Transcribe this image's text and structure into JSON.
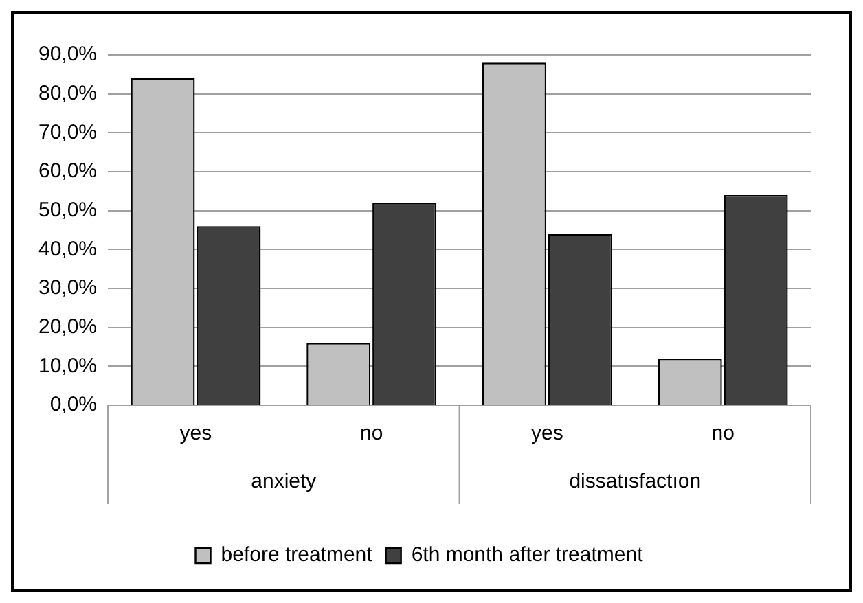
{
  "chart_data": {
    "type": "bar",
    "categories": [
      "yes",
      "no",
      "yes",
      "no"
    ],
    "series": [
      {
        "name": "before treatment",
        "color": "#c0c0c0",
        "values": [
          84,
          16,
          88,
          12
        ]
      },
      {
        "name": "6th month after treatment",
        "color": "#404040",
        "values": [
          46,
          52,
          44,
          54
        ]
      }
    ],
    "ylim": [
      0,
      90
    ],
    "yticks": [
      {
        "value": 0,
        "label": "0,0%"
      },
      {
        "value": 10,
        "label": "10,0%"
      },
      {
        "value": 20,
        "label": "20,0%"
      },
      {
        "value": 30,
        "label": "30,0%"
      },
      {
        "value": 40,
        "label": "40,0%"
      },
      {
        "value": 50,
        "label": "50,0%"
      },
      {
        "value": 60,
        "label": "60,0%"
      },
      {
        "value": 70,
        "label": "70,0%"
      },
      {
        "value": 80,
        "label": "80,0%"
      },
      {
        "value": 90,
        "label": "90,0%"
      }
    ],
    "annotations": [
      "anxiety",
      "dissatısfactıon"
    ],
    "grid": "y",
    "legend": "bottom"
  }
}
